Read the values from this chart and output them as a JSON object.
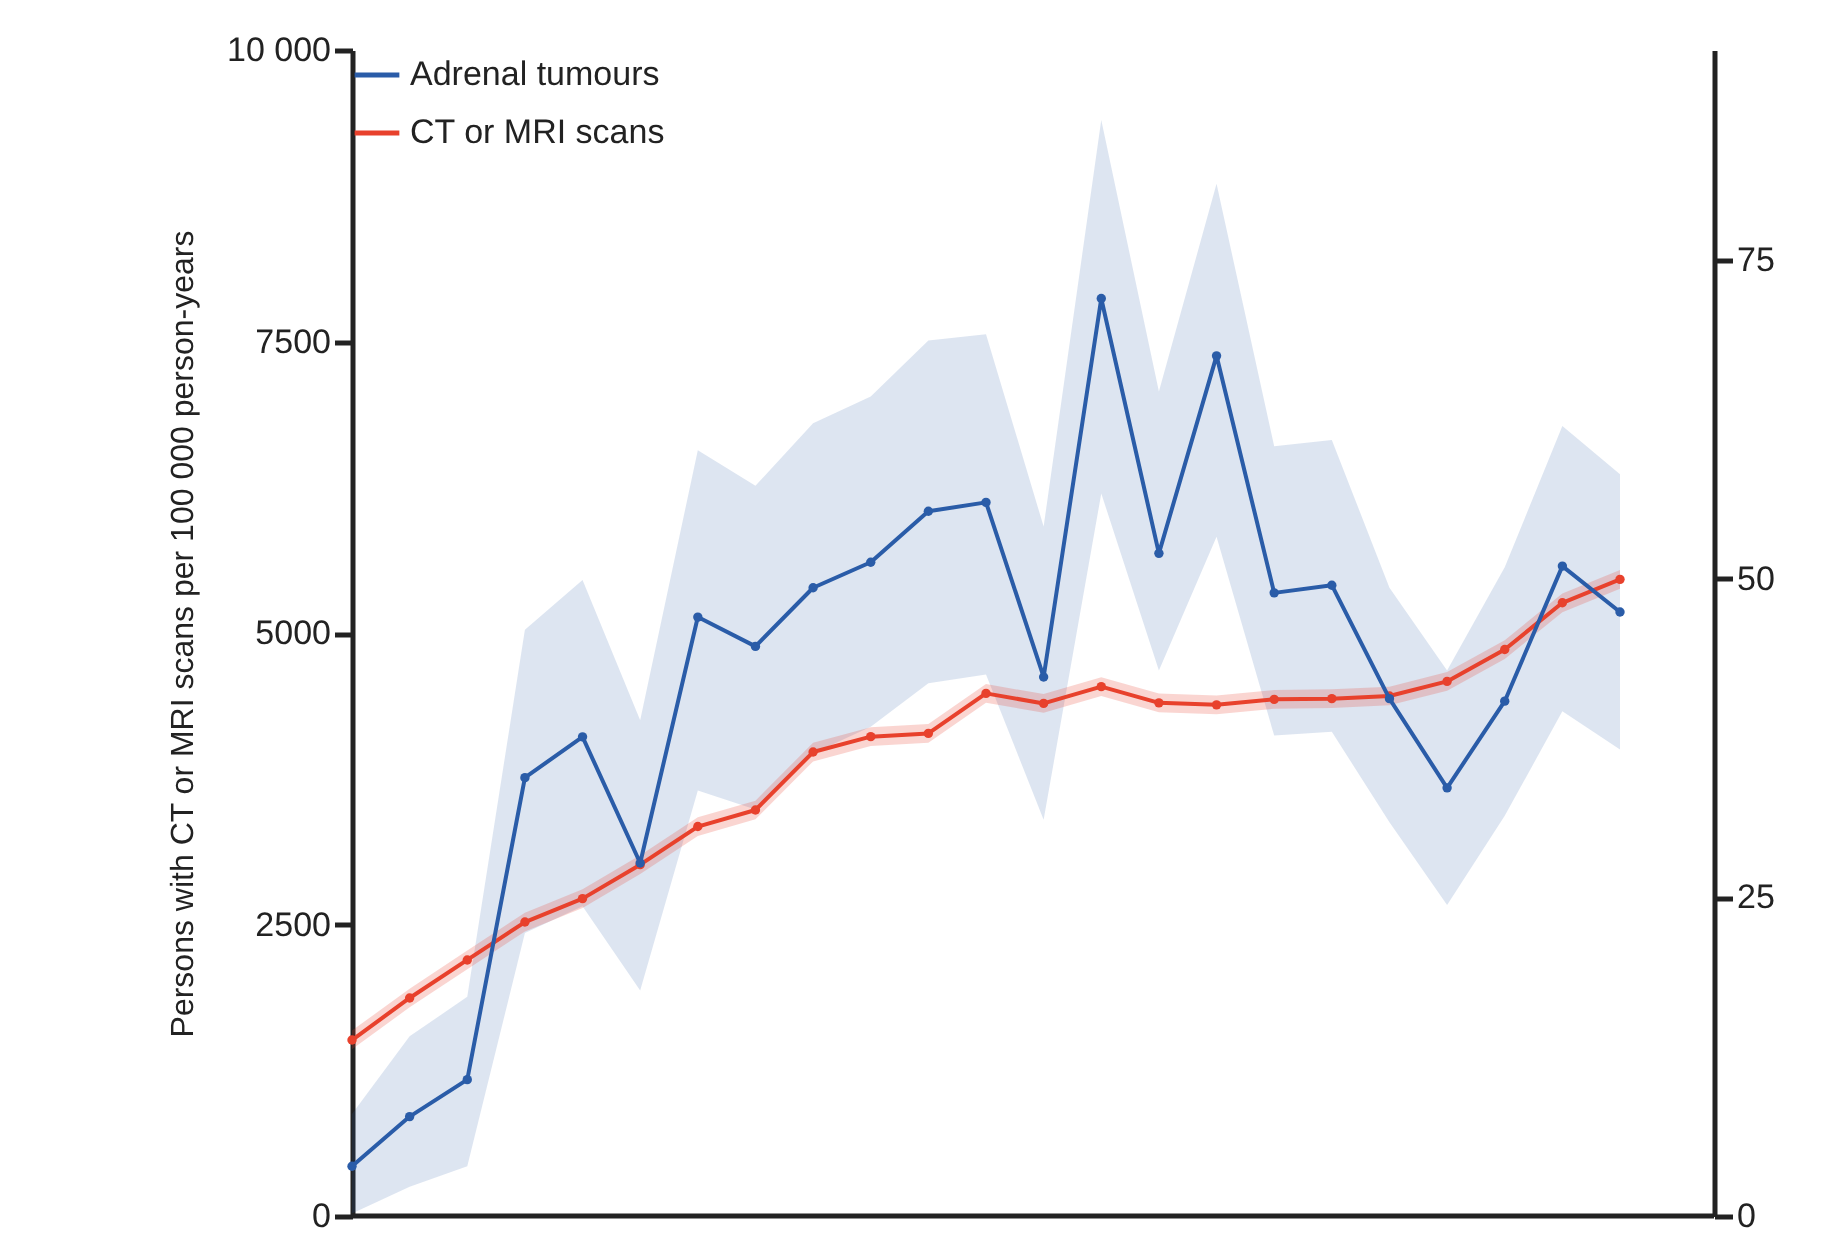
{
  "chart_data": {
    "type": "line",
    "ylabel": "Persons with CT or MRI scans per 100 000 person-years",
    "categories": [
      null,
      null,
      null,
      null,
      null,
      null,
      null,
      null,
      null,
      null,
      null,
      null,
      null,
      null,
      null,
      null,
      null,
      null,
      null,
      null,
      null,
      null,
      null
    ],
    "ylim": [
      0,
      10000
    ],
    "yticks": [
      0,
      2500,
      5000,
      7500,
      {
        "value": 10000,
        "label": "10 000"
      }
    ],
    "y2lim": [
      0,
      91.5
    ],
    "y2ticks": [
      0,
      25,
      50,
      75
    ],
    "series": [
      {
        "name": "Adrenal tumours",
        "color": "#2a5ca8",
        "axis": "y2",
        "values": [
          3.9,
          7.8,
          10.7,
          34.4,
          37.6,
          27.7,
          47.0,
          44.7,
          49.3,
          51.3,
          55.3,
          56.0,
          42.3,
          72.0,
          52.0,
          67.5,
          48.9,
          49.5,
          40.6,
          33.6,
          40.4,
          51.0,
          47.4
        ],
        "lower": [
          0.2,
          2.3,
          3.9,
          22.2,
          24.3,
          17.7,
          33.4,
          31.9,
          36.3,
          38.4,
          41.8,
          42.5,
          31.1,
          56.7,
          42.8,
          53.3,
          37.7,
          38.0,
          30.9,
          24.4,
          31.4,
          39.6,
          36.6
        ],
        "upper": [
          8.0,
          14.1,
          17.2,
          46.0,
          49.9,
          38.9,
          60.1,
          57.3,
          62.2,
          64.3,
          68.7,
          69.2,
          54.1,
          86.0,
          64.7,
          81.0,
          60.4,
          60.9,
          49.3,
          42.8,
          50.9,
          62.0,
          58.2
        ]
      },
      {
        "name": "CT or MRI scans",
        "color": "#e8412c",
        "values": [
          1509,
          1870,
          2196,
          2521,
          2722,
          3013,
          3340,
          3482,
          3979,
          4111,
          4139,
          4482,
          4396,
          4540,
          4401,
          4384,
          4431,
          4437,
          4460,
          4585,
          4858,
          5259,
          5460
        ],
        "lower": [
          1430,
          1790,
          2116,
          2441,
          2642,
          2933,
          3260,
          3402,
          3899,
          4031,
          4059,
          4402,
          4316,
          4460,
          4321,
          4304,
          4351,
          4357,
          4380,
          4505,
          4778,
          5179,
          5380
        ],
        "upper": [
          1590,
          1950,
          2276,
          2601,
          2802,
          3093,
          3420,
          3562,
          4059,
          4191,
          4219,
          4562,
          4476,
          4620,
          4481,
          4464,
          4511,
          4517,
          4540,
          4665,
          4938,
          5339,
          5540
        ]
      }
    ],
    "marker": "circle",
    "line_style": "solid",
    "grid": false,
    "legend": "top left"
  }
}
